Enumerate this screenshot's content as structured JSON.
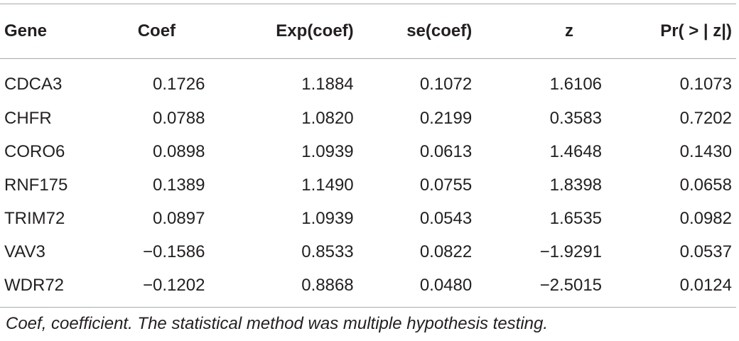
{
  "table": {
    "headers": [
      "Gene",
      "Coef",
      "Exp(coef)",
      "se(coef)",
      "z",
      "Pr( > | z|)"
    ],
    "rows": [
      [
        "CDCA3",
        "0.1726",
        "1.1884",
        "0.1072",
        "1.6106",
        "0.1073"
      ],
      [
        "CHFR",
        "0.0788",
        "1.0820",
        "0.2199",
        "0.3583",
        "0.7202"
      ],
      [
        "CORO6",
        "0.0898",
        "1.0939",
        "0.0613",
        "1.4648",
        "0.1430"
      ],
      [
        "RNF175",
        "0.1389",
        "1.1490",
        "0.0755",
        "1.8398",
        "0.0658"
      ],
      [
        "TRIM72",
        "0.0897",
        "1.0939",
        "0.0543",
        "1.6535",
        "0.0982"
      ],
      [
        "VAV3",
        "−0.1586",
        "0.8533",
        "0.0822",
        "−1.9291",
        "0.0537"
      ],
      [
        "WDR72",
        "−0.1202",
        "0.8868",
        "0.0480",
        "−2.5015",
        "0.0124"
      ]
    ]
  },
  "footnote": "Coef, coefficient. The statistical method was multiple hypothesis testing."
}
